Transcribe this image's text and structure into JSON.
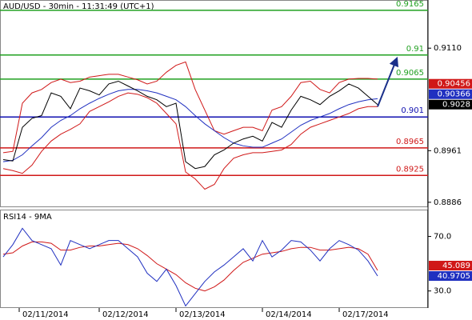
{
  "chart_data": [
    {
      "type": "line",
      "title": "AUD/USD - 30min - 11:31:49 (UTC+1)",
      "x": [
        1,
        4,
        7,
        10,
        13,
        16,
        19,
        22,
        25,
        28,
        31,
        34,
        37,
        40,
        43,
        46,
        49,
        52,
        55,
        58,
        61,
        64,
        67,
        70,
        73,
        76,
        79,
        82,
        85,
        88,
        91,
        94,
        97,
        100,
        103,
        106,
        109,
        112,
        115,
        118
      ],
      "xlim": [
        0,
        134
      ],
      "ylim": [
        0.888,
        0.918
      ],
      "yticks": [
        {
          "value": 0.911,
          "label": "0.9110"
        },
        0.8961,
        0.8886
      ],
      "series": [
        {
          "color": "#d01818",
          "values": [
            0.8958,
            0.896,
            0.903,
            0.9045,
            0.905,
            0.906,
            0.9065,
            0.906,
            0.9062,
            0.9068,
            0.907,
            0.9072,
            0.9072,
            0.9068,
            0.9064,
            0.9058,
            0.9062,
            0.9075,
            0.9085,
            0.909,
            0.905,
            0.902,
            0.899,
            0.8985,
            0.899,
            0.8995,
            0.8995,
            0.899,
            0.902,
            0.9025,
            0.904,
            0.906,
            0.9062,
            0.905,
            0.9045,
            0.906,
            0.9065,
            0.9066,
            0.9066,
            0.9065
          ]
        },
        {
          "color": "#d01818",
          "values": [
            0.8935,
            0.8932,
            0.8928,
            0.894,
            0.896,
            0.8975,
            0.8985,
            0.8992,
            0.9,
            0.9018,
            0.9025,
            0.9032,
            0.904,
            0.9045,
            0.9043,
            0.9038,
            0.903,
            0.9015,
            0.9,
            0.893,
            0.892,
            0.8905,
            0.8912,
            0.8935,
            0.895,
            0.8955,
            0.8958,
            0.8958,
            0.896,
            0.8962,
            0.897,
            0.8985,
            0.8995,
            0.9,
            0.9005,
            0.901,
            0.9015,
            0.9022,
            0.9025,
            0.9025
          ]
        },
        {
          "color": "#2030c0",
          "values": [
            0.8945,
            0.8947,
            0.8955,
            0.8968,
            0.898,
            0.8995,
            0.9005,
            0.9012,
            0.9022,
            0.903,
            0.9037,
            0.9043,
            0.9048,
            0.905,
            0.905,
            0.9048,
            0.9045,
            0.904,
            0.9035,
            0.9025,
            0.9012,
            0.9,
            0.899,
            0.898,
            0.8972,
            0.8968,
            0.8966,
            0.8966,
            0.8972,
            0.8978,
            0.8988,
            0.8998,
            0.9005,
            0.901,
            0.9015,
            0.9022,
            0.9028,
            0.9032,
            0.9035,
            0.90366
          ]
        },
        {
          "color": "#000000",
          "values": [
            0.8948,
            0.8946,
            0.8995,
            0.9008,
            0.9012,
            0.9045,
            0.904,
            0.9022,
            0.9052,
            0.9048,
            0.9042,
            0.9058,
            0.9062,
            0.9055,
            0.9048,
            0.904,
            0.9035,
            0.9025,
            0.903,
            0.8945,
            0.8935,
            0.8938,
            0.8955,
            0.8962,
            0.8972,
            0.8978,
            0.8982,
            0.8975,
            0.9002,
            0.8995,
            0.902,
            0.904,
            0.9035,
            0.9028,
            0.904,
            0.9048,
            0.9058,
            0.9052,
            0.904,
            0.9028
          ]
        }
      ],
      "levels": [
        {
          "value": 0.9165,
          "color": "#20a020"
        },
        {
          "value": 0.91,
          "color": "#20a020"
        },
        {
          "value": 0.9065,
          "color": "#20a020"
        },
        {
          "value": 0.901,
          "color": "#1010b0"
        },
        {
          "value": 0.8965,
          "color": "#d01818"
        },
        {
          "value": 0.8925,
          "color": "#d01818"
        }
      ],
      "tags": [
        {
          "value": 0.90456,
          "color": "#d01818"
        },
        {
          "value": 0.90366,
          "color": "#2030c0"
        },
        {
          "value": 0.9028,
          "color": "#000000"
        }
      ],
      "projection": {
        "x": [
          118,
          124
        ],
        "values": [
          0.9025,
          0.9095
        ],
        "color": "#1a2f8a"
      }
    },
    {
      "type": "line",
      "title": "RSI14 - 9MA",
      "x": [
        1,
        4,
        7,
        10,
        13,
        16,
        19,
        22,
        25,
        28,
        31,
        34,
        37,
        40,
        43,
        46,
        49,
        52,
        55,
        58,
        61,
        64,
        67,
        70,
        73,
        76,
        79,
        82,
        85,
        88,
        91,
        94,
        97,
        100,
        103,
        106,
        109,
        112,
        115,
        118
      ],
      "xlim": [
        0,
        134
      ],
      "ylim": [
        17.5,
        89.7
      ],
      "yticks": [
        {
          "value": 70,
          "label": "70.0"
        },
        {
          "value": 30,
          "label": "30.0"
        }
      ],
      "xticks": [
        {
          "value": 6,
          "label": "02/11/2014"
        },
        {
          "value": 31,
          "label": "02/12/2014"
        },
        {
          "value": 55,
          "label": "02/13/2014"
        },
        {
          "value": 82,
          "label": "02/14/2014"
        },
        {
          "value": 106,
          "label": "02/17/2014"
        }
      ],
      "series": [
        {
          "color": "#d01818",
          "values": [
            57,
            58,
            63,
            66,
            66,
            65,
            60,
            60,
            62,
            63,
            63,
            64,
            65,
            64,
            61,
            56,
            50,
            46,
            42,
            36,
            32,
            30,
            33,
            38,
            45,
            51,
            54,
            57,
            58,
            59,
            61,
            62,
            62,
            60,
            60,
            61,
            62,
            61,
            57,
            45.089
          ]
        },
        {
          "color": "#2030c0",
          "values": [
            55,
            64,
            76,
            67,
            64,
            61,
            49,
            67,
            64,
            61,
            64,
            67,
            67,
            61,
            55,
            43,
            37,
            46,
            34,
            19,
            28,
            37,
            44,
            49,
            55,
            61,
            52,
            67,
            55,
            60,
            67,
            66,
            60,
            52,
            61,
            67,
            64,
            60,
            52,
            40.9705
          ]
        }
      ],
      "tags": [
        {
          "value": 45.089,
          "color": "#d01818"
        },
        {
          "value": 40.9705,
          "color": "#2030c0"
        }
      ]
    }
  ]
}
